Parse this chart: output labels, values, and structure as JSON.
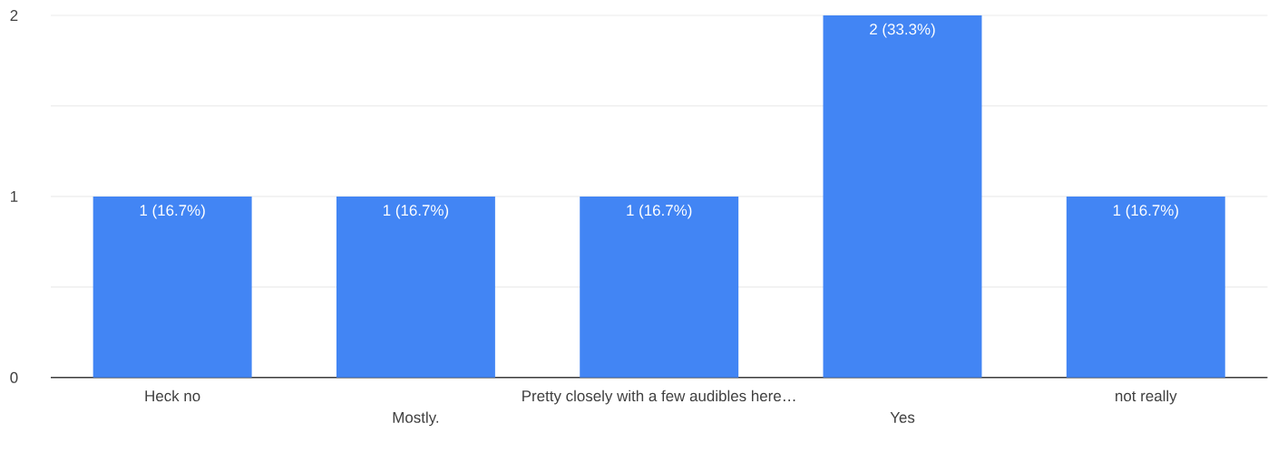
{
  "chart_data": {
    "type": "bar",
    "categories": [
      "Heck no",
      "Mostly.",
      "Pretty closely with a few audibles here…",
      "Yes",
      "not really"
    ],
    "values": [
      1,
      1,
      1,
      2,
      1
    ],
    "value_labels": [
      "1 (16.7%)",
      "1 (16.7%)",
      "1 (16.7%)",
      "2 (33.3%)",
      "1 (16.7%)"
    ],
    "color": "#4285f4",
    "ylim": [
      0,
      2
    ],
    "yticks": [
      0,
      {
        "value": 0.5,
        "label": null
      },
      1,
      {
        "value": 1.5,
        "label": null
      },
      2
    ],
    "grid": "y"
  }
}
